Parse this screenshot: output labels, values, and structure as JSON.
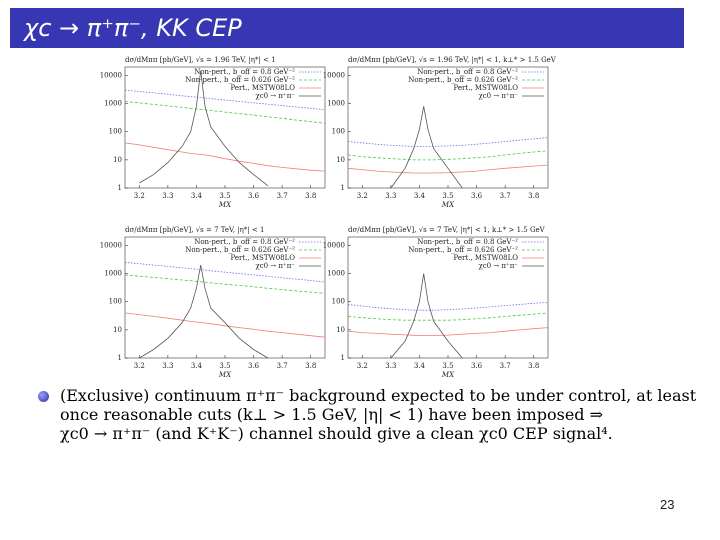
{
  "slide": {
    "title": "χc → π⁺π⁻, KK CEP",
    "bullet": [
      "(Exclusive) continuum π⁺π⁻ background expected to be under control, at least",
      "once reasonable cuts (k⊥ > 1.5 GeV, |η| < 1) have been imposed ⇒",
      "χc0 → π⁺π⁻ (and K⁺K⁻) channel should give a clean χc0 CEP signal⁴."
    ],
    "page_number": "23"
  },
  "chart_data": [
    {
      "type": "line",
      "title": "dσ/dMππ [pb/GeV], √s = 1.96 TeV, |η*| < 1",
      "x_label": "MX",
      "log_y": true,
      "xlim": [
        3.15,
        3.85
      ],
      "xticks": [
        3.2,
        3.3,
        3.4,
        3.5,
        3.6,
        3.7,
        3.8
      ],
      "ylim": [
        1,
        20000
      ],
      "yticks": [
        1,
        10,
        100,
        1000,
        10000
      ],
      "legend": "upper right",
      "x": [
        3.15,
        3.2,
        3.25,
        3.3,
        3.35,
        3.38,
        3.4,
        3.415,
        3.43,
        3.45,
        3.5,
        3.55,
        3.6,
        3.65,
        3.7,
        3.75,
        3.8,
        3.85
      ],
      "series": [
        {
          "name": "Non-pert., b_off = 0.8 GeV⁻²",
          "color": "#6a6af0",
          "values": [
            3000,
            2700,
            2400,
            2150,
            1900,
            1780,
            1700,
            1640,
            1580,
            1500,
            1340,
            1200,
            1070,
            950,
            850,
            760,
            680,
            600
          ]
        },
        {
          "name": "Non-pert., b_off = 0.626 GeV⁻²",
          "color": "#44cc44",
          "values": [
            1200,
            1060,
            940,
            830,
            730,
            680,
            640,
            620,
            600,
            570,
            500,
            440,
            390,
            340,
            300,
            260,
            230,
            200
          ]
        },
        {
          "name": "Pert., MSTW08LO",
          "color": "#f08070",
          "values": [
            40,
            34,
            28,
            23,
            19,
            17,
            16,
            15.5,
            15,
            14,
            11,
            9,
            7.5,
            6.2,
            5.4,
            4.8,
            4.3,
            4
          ]
        },
        {
          "name": "χc0 → π⁺π⁻",
          "color": "#555555",
          "values": [
            null,
            1.5,
            3,
            8,
            30,
            100,
            800,
            15000,
            800,
            150,
            30,
            8,
            3,
            1.2,
            null,
            null,
            null,
            null
          ]
        }
      ]
    },
    {
      "type": "line",
      "title": "dσ/dMππ [pb/GeV], √s = 1.96 TeV, |η*| < 1, k⊥* > 1.5 GeV",
      "x_label": "MX",
      "log_y": true,
      "xlim": [
        3.15,
        3.85
      ],
      "xticks": [
        3.2,
        3.3,
        3.4,
        3.5,
        3.6,
        3.7,
        3.8
      ],
      "ylim": [
        1,
        20000
      ],
      "yticks": [
        1,
        10,
        100,
        1000,
        10000
      ],
      "legend": "upper right",
      "x": [
        3.15,
        3.2,
        3.25,
        3.3,
        3.35,
        3.38,
        3.4,
        3.415,
        3.43,
        3.45,
        3.5,
        3.55,
        3.6,
        3.65,
        3.7,
        3.75,
        3.8,
        3.85
      ],
      "series": [
        {
          "name": "Non-pert., b_off = 0.8 GeV⁻²",
          "color": "#6a6af0",
          "values": [
            45,
            40,
            36,
            33,
            31,
            30,
            30,
            30,
            30,
            30,
            31,
            33,
            36,
            40,
            45,
            50,
            56,
            62
          ]
        },
        {
          "name": "Non-pert., b_off = 0.626 GeV⁻²",
          "color": "#44cc44",
          "values": [
            15,
            13,
            12,
            11,
            10.5,
            10,
            10,
            10,
            10,
            10,
            10.5,
            11,
            12,
            13,
            15,
            17,
            19,
            21
          ]
        },
        {
          "name": "Pert., MSTW08LO",
          "color": "#f08070",
          "values": [
            5,
            4.5,
            4,
            3.7,
            3.5,
            3.4,
            3.4,
            3.4,
            3.4,
            3.4,
            3.5,
            3.7,
            4,
            4.5,
            5,
            5.5,
            6,
            6.5
          ]
        },
        {
          "name": "χc0 → π⁺π⁻",
          "color": "#555555",
          "values": [
            null,
            null,
            null,
            1,
            5,
            25,
            120,
            800,
            120,
            25,
            5,
            1,
            null,
            null,
            null,
            null,
            null,
            null
          ]
        }
      ]
    },
    {
      "type": "line",
      "title": "dσ/dMππ [pb/GeV], √s = 7 TeV, |η*| < 1",
      "x_label": "MX",
      "log_y": true,
      "xlim": [
        3.15,
        3.85
      ],
      "xticks": [
        3.2,
        3.3,
        3.4,
        3.5,
        3.6,
        3.7,
        3.8
      ],
      "ylim": [
        1,
        20000
      ],
      "yticks": [
        1,
        10,
        100,
        1000,
        10000
      ],
      "legend": "upper right",
      "x": [
        3.15,
        3.2,
        3.25,
        3.3,
        3.35,
        3.38,
        3.4,
        3.415,
        3.43,
        3.45,
        3.5,
        3.55,
        3.6,
        3.65,
        3.7,
        3.75,
        3.8,
        3.85
      ],
      "series": [
        {
          "name": "Non-pert., b_off = 0.8 GeV⁻²",
          "color": "#6a6af0",
          "values": [
            2500,
            2250,
            2000,
            1800,
            1600,
            1500,
            1430,
            1380,
            1330,
            1260,
            1120,
            1000,
            900,
            800,
            710,
            640,
            570,
            500
          ]
        },
        {
          "name": "Non-pert., b_off = 0.626 GeV⁻²",
          "color": "#44cc44",
          "values": [
            900,
            810,
            730,
            660,
            590,
            560,
            530,
            510,
            500,
            470,
            420,
            380,
            340,
            300,
            270,
            240,
            220,
            200
          ]
        },
        {
          "name": "Pert., MSTW08LO",
          "color": "#f08070",
          "values": [
            40,
            35,
            30,
            26,
            22,
            20,
            19,
            18,
            17.5,
            16.5,
            14,
            12,
            10.5,
            9,
            8,
            7,
            6.2,
            5.5
          ]
        },
        {
          "name": "χc0 → π⁺π⁻",
          "color": "#555555",
          "values": [
            null,
            1,
            2,
            5,
            18,
            60,
            300,
            2000,
            300,
            60,
            18,
            5,
            2,
            1,
            null,
            null,
            null,
            null
          ]
        }
      ]
    },
    {
      "type": "line",
      "title": "dσ/dMππ [pb/GeV], √s = 7 TeV, |η*| < 1, k⊥* > 1.5 GeV",
      "x_label": "MX",
      "log_y": true,
      "xlim": [
        3.15,
        3.85
      ],
      "xticks": [
        3.2,
        3.3,
        3.4,
        3.5,
        3.6,
        3.7,
        3.8
      ],
      "ylim": [
        1,
        20000
      ],
      "yticks": [
        1,
        10,
        100,
        1000,
        10000
      ],
      "legend": "upper right",
      "x": [
        3.15,
        3.2,
        3.25,
        3.3,
        3.35,
        3.38,
        3.4,
        3.415,
        3.43,
        3.45,
        3.5,
        3.55,
        3.6,
        3.65,
        3.7,
        3.75,
        3.8,
        3.85
      ],
      "series": [
        {
          "name": "Non-pert., b_off = 0.8 GeV⁻²",
          "color": "#6a6af0",
          "values": [
            80,
            70,
            62,
            56,
            52,
            50,
            50,
            50,
            50,
            50,
            52,
            55,
            60,
            66,
            73,
            80,
            88,
            95
          ]
        },
        {
          "name": "Non-pert., b_off = 0.626 GeV⁻²",
          "color": "#44cc44",
          "values": [
            30,
            27,
            25,
            23,
            22,
            22,
            22,
            22,
            22,
            22,
            22,
            23,
            25,
            27,
            30,
            33,
            36,
            40
          ]
        },
        {
          "name": "Pert., MSTW08LO",
          "color": "#f08070",
          "values": [
            9,
            8,
            7.5,
            7,
            6.6,
            6.4,
            6.3,
            6.3,
            6.3,
            6.3,
            6.5,
            7,
            7.5,
            8,
            9,
            10,
            11,
            12
          ]
        },
        {
          "name": "χc0 → π⁺π⁻",
          "color": "#555555",
          "values": [
            null,
            null,
            null,
            1,
            4,
            20,
            100,
            1000,
            100,
            20,
            4,
            1,
            null,
            null,
            null,
            null,
            null,
            null
          ]
        }
      ]
    }
  ]
}
